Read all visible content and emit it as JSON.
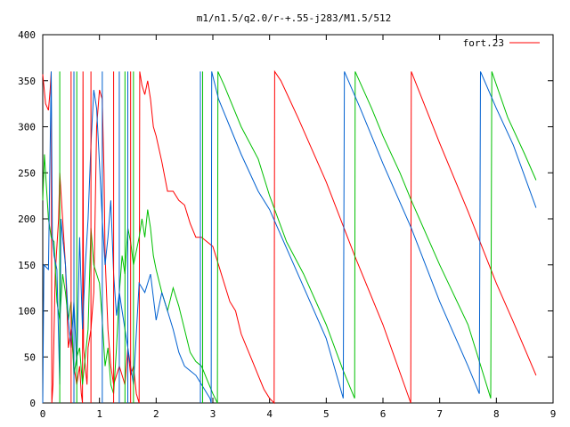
{
  "chart_data": {
    "type": "line",
    "title": "m1/n1.5/q2.0/r-+.55-j283/M1.5/512",
    "xlabel": "",
    "ylabel": "",
    "xlim": [
      0,
      9
    ],
    "ylim": [
      0,
      400
    ],
    "xticks": [
      "0",
      "1",
      "2",
      "3",
      "4",
      "5",
      "6",
      "7",
      "8",
      "9"
    ],
    "yticks": [
      "0",
      "50",
      "100",
      "150",
      "200",
      "250",
      "300",
      "350",
      "400"
    ],
    "grid": false,
    "legend_position": "top-right",
    "legend": [
      {
        "label": "fort.23",
        "color": "#ff0000"
      }
    ],
    "series": [
      {
        "name": "fort.23",
        "color": "#ff0000",
        "points": [
          [
            0.0,
            357
          ],
          [
            0.05,
            325
          ],
          [
            0.1,
            318
          ],
          [
            0.13,
            340
          ],
          [
            0.15,
            360
          ],
          [
            0.16,
            0
          ],
          [
            0.18,
            20
          ],
          [
            0.22,
            140
          ],
          [
            0.28,
            200
          ],
          [
            0.3,
            250
          ],
          [
            0.35,
            200
          ],
          [
            0.4,
            150
          ],
          [
            0.45,
            60
          ],
          [
            0.5,
            80
          ],
          [
            0.55,
            40
          ],
          [
            0.6,
            20
          ],
          [
            0.65,
            40
          ],
          [
            0.68,
            10
          ],
          [
            0.7,
            0
          ],
          [
            0.71,
            360
          ],
          [
            0.72,
            60
          ],
          [
            0.75,
            40
          ],
          [
            0.78,
            20
          ],
          [
            0.8,
            60
          ],
          [
            0.85,
            80
          ],
          [
            0.9,
            120
          ],
          [
            0.95,
            300
          ],
          [
            1.0,
            340
          ],
          [
            1.05,
            330
          ],
          [
            1.08,
            250
          ],
          [
            1.1,
            160
          ],
          [
            1.15,
            80
          ],
          [
            1.2,
            40
          ],
          [
            1.25,
            20
          ],
          [
            1.3,
            30
          ],
          [
            1.35,
            40
          ],
          [
            1.4,
            30
          ],
          [
            1.45,
            20
          ],
          [
            1.5,
            60
          ],
          [
            1.55,
            30
          ],
          [
            1.6,
            40
          ],
          [
            1.65,
            10
          ],
          [
            1.7,
            0
          ],
          [
            1.71,
            360
          ],
          [
            1.75,
            345
          ],
          [
            1.8,
            335
          ],
          [
            1.85,
            350
          ],
          [
            1.9,
            330
          ],
          [
            1.95,
            300
          ],
          [
            2.0,
            290
          ],
          [
            2.1,
            262
          ],
          [
            2.2,
            230
          ],
          [
            2.3,
            230
          ],
          [
            2.4,
            220
          ],
          [
            2.5,
            215
          ],
          [
            2.6,
            195
          ],
          [
            2.7,
            180
          ],
          [
            2.8,
            180
          ],
          [
            2.9,
            175
          ],
          [
            3.0,
            170
          ],
          [
            3.1,
            150
          ],
          [
            3.2,
            130
          ],
          [
            3.3,
            110
          ],
          [
            3.4,
            100
          ],
          [
            3.5,
            75
          ],
          [
            3.6,
            60
          ],
          [
            3.7,
            45
          ],
          [
            3.8,
            30
          ],
          [
            3.9,
            15
          ],
          [
            4.0,
            5
          ],
          [
            4.08,
            0
          ],
          [
            4.09,
            360
          ],
          [
            4.2,
            350
          ],
          [
            4.5,
            310
          ],
          [
            5.0,
            240
          ],
          [
            5.5,
            160
          ],
          [
            6.0,
            85
          ],
          [
            6.49,
            0
          ],
          [
            6.5,
            360
          ],
          [
            7.0,
            282
          ],
          [
            7.5,
            208
          ],
          [
            8.0,
            130
          ],
          [
            8.3,
            88
          ],
          [
            8.7,
            30
          ]
        ]
      },
      {
        "name": "",
        "color": "#00c000",
        "points": [
          [
            0.0,
            220
          ],
          [
            0.03,
            270
          ],
          [
            0.06,
            240
          ],
          [
            0.1,
            200
          ],
          [
            0.15,
            180
          ],
          [
            0.2,
            175
          ],
          [
            0.25,
            110
          ],
          [
            0.3,
            90
          ],
          [
            0.35,
            140
          ],
          [
            0.4,
            120
          ],
          [
            0.45,
            90
          ],
          [
            0.5,
            110
          ],
          [
            0.55,
            30
          ],
          [
            0.6,
            50
          ],
          [
            0.65,
            60
          ],
          [
            0.7,
            20
          ],
          [
            0.8,
            80
          ],
          [
            0.85,
            190
          ],
          [
            0.9,
            150
          ],
          [
            1.0,
            130
          ],
          [
            1.05,
            90
          ],
          [
            1.1,
            40
          ],
          [
            1.15,
            60
          ],
          [
            1.2,
            20
          ],
          [
            1.25,
            10
          ],
          [
            1.3,
            60
          ],
          [
            1.35,
            120
          ],
          [
            1.4,
            160
          ],
          [
            1.45,
            140
          ],
          [
            1.5,
            190
          ],
          [
            1.55,
            175
          ],
          [
            1.6,
            150
          ],
          [
            1.65,
            165
          ],
          [
            1.7,
            180
          ],
          [
            1.75,
            200
          ],
          [
            1.8,
            180
          ],
          [
            1.85,
            210
          ],
          [
            1.9,
            190
          ],
          [
            1.95,
            160
          ],
          [
            2.0,
            145
          ],
          [
            2.1,
            120
          ],
          [
            2.2,
            100
          ],
          [
            2.3,
            125
          ],
          [
            2.4,
            105
          ],
          [
            2.5,
            80
          ],
          [
            2.6,
            55
          ],
          [
            2.7,
            45
          ],
          [
            2.8,
            40
          ],
          [
            2.9,
            25
          ],
          [
            3.0,
            10
          ],
          [
            3.08,
            0
          ],
          [
            3.09,
            360
          ],
          [
            3.2,
            345
          ],
          [
            3.5,
            300
          ],
          [
            3.8,
            265
          ],
          [
            4.0,
            225
          ],
          [
            4.3,
            175
          ],
          [
            4.6,
            140
          ],
          [
            5.0,
            85
          ],
          [
            5.3,
            35
          ],
          [
            5.5,
            5
          ],
          [
            5.51,
            360
          ],
          [
            5.8,
            320
          ],
          [
            6.0,
            290
          ],
          [
            6.3,
            250
          ],
          [
            6.5,
            220
          ],
          [
            7.0,
            150
          ],
          [
            7.5,
            85
          ],
          [
            7.9,
            5
          ],
          [
            7.92,
            360
          ],
          [
            8.2,
            310
          ],
          [
            8.5,
            270
          ],
          [
            8.7,
            242
          ]
        ]
      },
      {
        "name": "",
        "color": "#0060d0",
        "points": [
          [
            0.0,
            0
          ],
          [
            0.02,
            150
          ],
          [
            0.1,
            145
          ],
          [
            0.15,
            360
          ],
          [
            0.17,
            180
          ],
          [
            0.2,
            160
          ],
          [
            0.25,
            145
          ],
          [
            0.3,
            20
          ],
          [
            0.32,
            200
          ],
          [
            0.35,
            180
          ],
          [
            0.4,
            150
          ],
          [
            0.45,
            90
          ],
          [
            0.5,
            60
          ],
          [
            0.55,
            110
          ],
          [
            0.6,
            40
          ],
          [
            0.65,
            180
          ],
          [
            0.7,
            80
          ],
          [
            0.75,
            150
          ],
          [
            0.8,
            200
          ],
          [
            0.85,
            280
          ],
          [
            0.9,
            340
          ],
          [
            0.95,
            320
          ],
          [
            1.0,
            260
          ],
          [
            1.05,
            200
          ],
          [
            1.1,
            150
          ],
          [
            1.15,
            180
          ],
          [
            1.2,
            220
          ],
          [
            1.25,
            140
          ],
          [
            1.3,
            95
          ],
          [
            1.35,
            120
          ],
          [
            1.4,
            100
          ],
          [
            1.45,
            80
          ],
          [
            1.5,
            60
          ],
          [
            1.55,
            40
          ],
          [
            1.6,
            20
          ],
          [
            1.7,
            130
          ],
          [
            1.8,
            120
          ],
          [
            1.9,
            140
          ],
          [
            2.0,
            90
          ],
          [
            2.1,
            120
          ],
          [
            2.2,
            100
          ],
          [
            2.3,
            80
          ],
          [
            2.4,
            55
          ],
          [
            2.5,
            40
          ],
          [
            2.6,
            35
          ],
          [
            2.7,
            30
          ],
          [
            2.8,
            20
          ],
          [
            2.9,
            10
          ],
          [
            2.95,
            5
          ],
          [
            2.97,
            0
          ],
          [
            2.98,
            360
          ],
          [
            3.1,
            330
          ],
          [
            3.3,
            300
          ],
          [
            3.5,
            270
          ],
          [
            3.8,
            230
          ],
          [
            4.0,
            210
          ],
          [
            4.5,
            140
          ],
          [
            5.0,
            70
          ],
          [
            5.3,
            5
          ],
          [
            5.32,
            360
          ],
          [
            5.6,
            320
          ],
          [
            6.0,
            260
          ],
          [
            6.5,
            190
          ],
          [
            7.0,
            110
          ],
          [
            7.5,
            40
          ],
          [
            7.7,
            10
          ],
          [
            7.72,
            360
          ],
          [
            8.0,
            320
          ],
          [
            8.3,
            280
          ],
          [
            8.7,
            212
          ]
        ]
      }
    ],
    "vertical_resets": [
      {
        "x": 0.5,
        "color": "#ff0000"
      },
      {
        "x": 0.85,
        "color": "#ff0000"
      },
      {
        "x": 1.25,
        "color": "#ff0000"
      },
      {
        "x": 1.55,
        "color": "#ff0000"
      },
      {
        "x": 0.3,
        "color": "#00c000"
      },
      {
        "x": 0.6,
        "color": "#00c000"
      },
      {
        "x": 1.45,
        "color": "#00c000"
      },
      {
        "x": 1.6,
        "color": "#00c000"
      },
      {
        "x": 2.82,
        "color": "#00c000"
      },
      {
        "x": 0.55,
        "color": "#0060d0"
      },
      {
        "x": 1.05,
        "color": "#0060d0"
      },
      {
        "x": 1.35,
        "color": "#0060d0"
      },
      {
        "x": 1.5,
        "color": "#0060d0"
      },
      {
        "x": 2.78,
        "color": "#0060d0"
      }
    ]
  }
}
